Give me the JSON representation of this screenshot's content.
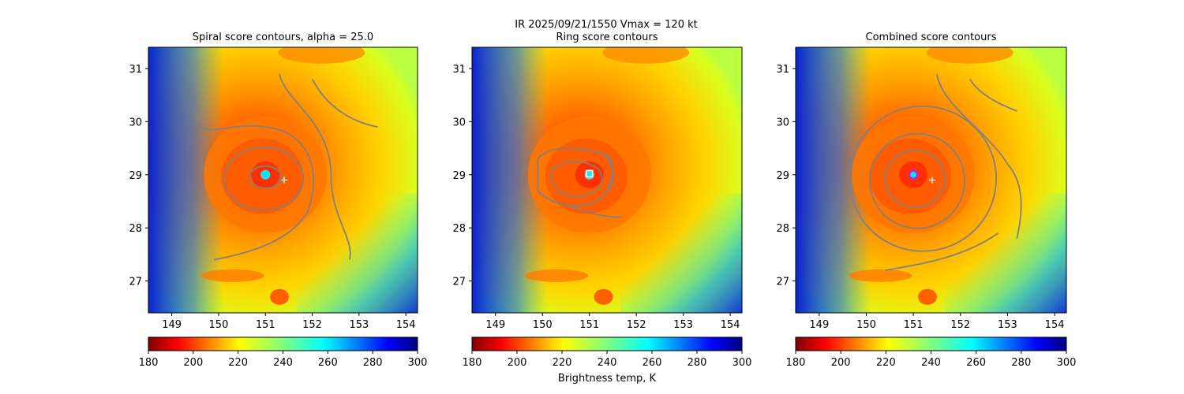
{
  "suptitle_line1": "IR  2025/09/21/1550    Vmax = 120 kt",
  "colorbar": {
    "label": "Brightness temp, K",
    "range": [
      180,
      300
    ],
    "ticks": [
      180,
      200,
      220,
      240,
      260,
      280,
      300
    ],
    "colormap": "jet_r"
  },
  "chart_data": [
    {
      "type": "heatmap",
      "title": "Spiral score contours, alpha = 25.0",
      "xlim": [
        148.5,
        154.25
      ],
      "ylim": [
        26.4,
        31.4
      ],
      "xticks": [
        149,
        150,
        151,
        152,
        153,
        154
      ],
      "yticks": [
        27,
        28,
        29,
        30,
        31
      ],
      "center_marker": {
        "lon": 151.0,
        "lat": 29.0,
        "style": "cyan-dot"
      },
      "plus_marker": {
        "lon": 151.4,
        "lat": 28.9
      },
      "contour_color": "#808080"
    },
    {
      "type": "heatmap",
      "title": "Ring score contours",
      "xlim": [
        148.5,
        154.25
      ],
      "ylim": [
        26.4,
        31.4
      ],
      "xticks": [
        149,
        150,
        151,
        152,
        153,
        154
      ],
      "yticks": [
        27,
        28,
        29,
        30,
        31
      ],
      "center_marker": {
        "lon": 151.0,
        "lat": 29.02,
        "style": "white-square"
      },
      "contour_color": "#808080"
    },
    {
      "type": "heatmap",
      "title": "Combined score contours",
      "xlim": [
        148.5,
        154.25
      ],
      "ylim": [
        26.4,
        31.4
      ],
      "xticks": [
        149,
        150,
        151,
        152,
        153,
        154
      ],
      "yticks": [
        27,
        28,
        29,
        30,
        31
      ],
      "center_marker": {
        "lon": 151.0,
        "lat": 29.0,
        "style": "magenta-ring"
      },
      "plus_marker": {
        "lon": 151.4,
        "lat": 28.9
      },
      "contour_color": "#808080"
    }
  ]
}
